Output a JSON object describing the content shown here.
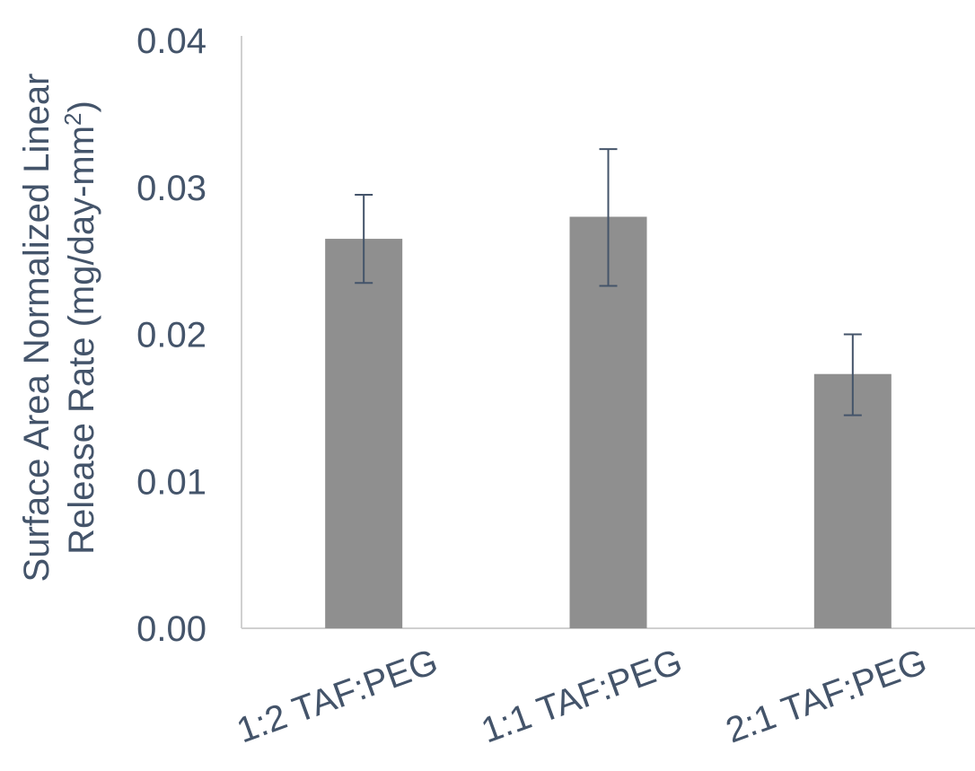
{
  "chart_data": {
    "type": "bar",
    "title": "",
    "xlabel": "",
    "ylabel": {
      "line1": "Surface Area Normalized Linear",
      "line2_main": "Release Rate (mg/day-mm",
      "line2_sup": "2",
      "line2_end": ")"
    },
    "categories": [
      "1:2 TAF:PEG",
      "1:1 TAF:PEG",
      "2:1 TAF:PEG"
    ],
    "series": [
      {
        "values": [
          0.0265,
          0.028,
          0.0173
        ],
        "error_low": [
          0.0235,
          0.0233,
          0.0145
        ],
        "error_high": [
          0.0295,
          0.0326,
          0.02
        ]
      }
    ],
    "ylim": [
      0,
      0.04
    ],
    "y_ticks": [
      "0.00",
      "0.01",
      "0.02",
      "0.03",
      "0.04"
    ],
    "grid": false,
    "legend": "none",
    "colors": {
      "bar": "#8f8f8f",
      "error_bar": "#44546a",
      "axis": "#d0d0d0",
      "text": "#44546a"
    }
  }
}
